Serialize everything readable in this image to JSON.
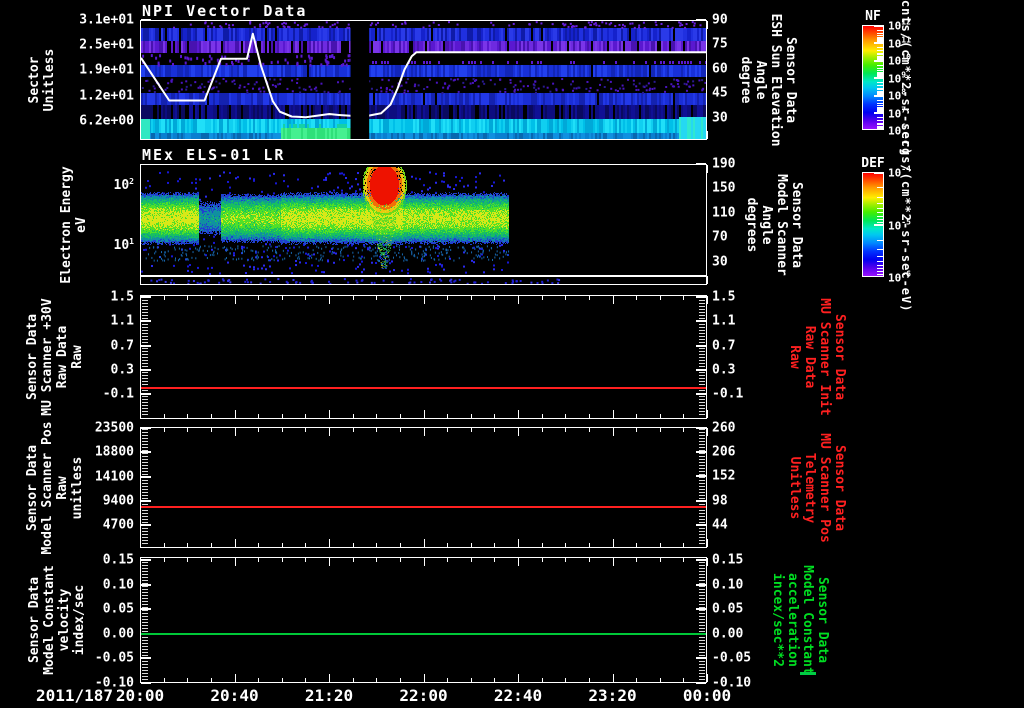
{
  "colors": {
    "background": "#000000",
    "frame": "#ffffff",
    "white_curve": "#ffffff",
    "red_series": "#ff2020",
    "green_series": "#00c838",
    "red_label": "#ff2020",
    "green_label": "#00dd22"
  },
  "time_axis": {
    "date_label": "2011/187",
    "tick_labels": [
      "20:00",
      "20:40",
      "21:20",
      "22:00",
      "22:40",
      "23:20",
      "00:00"
    ],
    "start": "20:00",
    "end": "00:00",
    "xlim_minutes": [
      0,
      240
    ],
    "major_tick_minutes": 40,
    "minor_tick_minutes": 10
  },
  "stray_mark": {
    "color": "#00cc44",
    "note": "small green dash artifact right of bottom axis"
  },
  "chart_data": [
    {
      "id": "npi",
      "type": "spectrogram",
      "title": "NPI Vector Data",
      "left_axis": {
        "label_lines": [
          "Sector",
          "Unitless"
        ],
        "ylim": [
          1.5,
          31
        ],
        "ticks": [
          {
            "label": "3.1e+01",
            "value": 31
          },
          {
            "label": "2.5e+01",
            "value": 24.8
          },
          {
            "label": "1.9e+01",
            "value": 18.6
          },
          {
            "label": "1.2e+01",
            "value": 12.4
          },
          {
            "label": "6.2e+00",
            "value": 6.2
          }
        ]
      },
      "right_axis": {
        "label_lines": [
          "Sensor Data",
          "ESH Sun Elevation",
          "Angle",
          "degree"
        ],
        "ylim": [
          16.5,
          90
        ],
        "ticks": [
          {
            "label": "90",
            "value": 90
          },
          {
            "label": "75",
            "value": 75
          },
          {
            "label": "60",
            "value": 60
          },
          {
            "label": "45",
            "value": 45
          },
          {
            "label": "30",
            "value": 30
          }
        ]
      },
      "colorbar": {
        "name": "NF",
        "units": "cnts/(cm**2-sr-sec)",
        "tick_exponents": [
          12,
          11,
          10,
          9,
          8,
          7,
          6
        ]
      },
      "overlay_line": {
        "name": "esh-sun-elevation-curve",
        "color": "#ffffff",
        "axis": "right",
        "points_min_deg": [
          [
            0,
            67
          ],
          [
            12,
            40.5
          ],
          [
            27,
            40.5
          ],
          [
            34,
            66.5
          ],
          [
            45,
            66.5
          ],
          [
            47.5,
            82
          ],
          [
            51,
            62
          ],
          [
            56,
            40
          ],
          [
            59,
            33.5
          ],
          [
            64,
            30.5
          ],
          [
            70,
            30
          ],
          [
            80,
            32
          ],
          [
            84,
            31.5
          ],
          [
            89,
            31
          ],
          [
            96.5,
            31
          ],
          [
            102,
            32.5
          ],
          [
            106,
            38
          ],
          [
            109,
            48
          ],
          [
            112,
            60
          ],
          [
            115,
            68
          ],
          [
            117,
            70.5
          ],
          [
            240,
            70.5
          ]
        ]
      },
      "data_gap_minutes": [
        89,
        96.5
      ],
      "description": "horizontal blue/purple count bands with bright cyan band near bottom and data-gap column ~21:29-21:37"
    },
    {
      "id": "els",
      "type": "spectrogram",
      "title": "MEx ELS-01 LR",
      "left_axis": {
        "label_lines": [
          "Electron Energy",
          "eV"
        ],
        "scale": "log",
        "ylim_exp": [
          0.33,
          2.35
        ],
        "ticks": [
          {
            "label": "10^2",
            "exp": 2
          },
          {
            "label": "10^1",
            "exp": 1
          }
        ]
      },
      "right_axis": {
        "label_lines": [
          "Sensor Data",
          "Model Scanner",
          "Angle",
          "degrees"
        ],
        "ylim": [
          -8.4,
          190
        ],
        "ticks": [
          {
            "label": "190",
            "value": 190
          },
          {
            "label": "150",
            "value": 150
          },
          {
            "label": "110",
            "value": 110
          },
          {
            "label": "70",
            "value": 70
          },
          {
            "label": "30",
            "value": 30
          }
        ]
      },
      "colorbar": {
        "name": "DEF",
        "units": "ergs/(cm**2-sr-sec-eV)",
        "tick_exponents": [
          -4,
          -5,
          -6
        ]
      },
      "data_end_minute": 156,
      "features": {
        "main_band_energy_eV": [
          7,
          60
        ],
        "burst_minutes": [
          95,
          112
        ],
        "burst": "intense red high-energy flux burst ~21:35-21:52 with plume to low energies"
      }
    },
    {
      "id": "mu30v",
      "type": "line",
      "left_axis": {
        "label_lines": [
          "Sensor Data",
          "MU Scanner +30V",
          "Raw Data",
          "Raw"
        ],
        "ylim": [
          -0.512,
          1.533
        ],
        "ticks": [
          {
            "label": "1.5",
            "value": 1.5
          },
          {
            "label": "1.1",
            "value": 1.1
          },
          {
            "label": "0.7",
            "value": 0.7
          },
          {
            "label": "0.3",
            "value": 0.3
          },
          {
            "label": "-0.1",
            "value": -0.1
          }
        ]
      },
      "right_axis": {
        "label_lines": [
          "Sensor Data",
          "MU Scanner Init",
          "Raw Data",
          "Raw"
        ],
        "label_color": "#ff2020",
        "ylim": [
          -0.512,
          1.533
        ],
        "ticks": [
          {
            "label": "1.5",
            "value": 1.5
          },
          {
            "label": "1.1",
            "value": 1.1
          },
          {
            "label": "0.7",
            "value": 0.7
          },
          {
            "label": "0.3",
            "value": 0.3
          },
          {
            "label": "-0.1",
            "value": -0.1
          }
        ]
      },
      "series": [
        {
          "name": "mu-scanner-30v-raw",
          "color": "#ff2020",
          "shape": "constant",
          "value": 0.0
        }
      ]
    },
    {
      "id": "scanner-pos",
      "type": "line",
      "left_axis": {
        "label_lines": [
          "Sensor Data",
          "Model Scanner Pos",
          "Raw",
          "unitless"
        ],
        "ylim": [
          240,
          23700
        ],
        "ticks": [
          {
            "label": "23500",
            "value": 23500
          },
          {
            "label": "18800",
            "value": 18800
          },
          {
            "label": "14100",
            "value": 14100
          },
          {
            "label": "9400",
            "value": 9400
          },
          {
            "label": "4700",
            "value": 4700
          }
        ]
      },
      "right_axis": {
        "label_lines": [
          "Sensor Data",
          "MU Scanner Pos",
          "Telemetry",
          "Unitless"
        ],
        "label_color": "#ff2020",
        "ylim": [
          -7.2,
          262
        ],
        "ticks": [
          {
            "label": "260",
            "value": 260
          },
          {
            "label": "206",
            "value": 206
          },
          {
            "label": "152",
            "value": 152
          },
          {
            "label": "98",
            "value": 98
          },
          {
            "label": "44",
            "value": 44
          }
        ]
      },
      "series": [
        {
          "name": "model-scanner-pos-raw",
          "color": "#ff2020",
          "shape": "constant",
          "value": 8200
        }
      ]
    },
    {
      "id": "model-constant",
      "type": "line",
      "left_axis": {
        "label_lines": [
          "Sensor Data",
          "Model Constant",
          "velocity",
          "index/sec"
        ],
        "ylim": [
          -0.1,
          0.156
        ],
        "ticks": [
          {
            "label": "0.15",
            "value": 0.15
          },
          {
            "label": "0.10",
            "value": 0.1
          },
          {
            "label": "0.05",
            "value": 0.05
          },
          {
            "label": "0.00",
            "value": 0.0
          },
          {
            "label": "-0.05",
            "value": -0.05
          },
          {
            "label": "-0.10",
            "value": -0.1
          }
        ]
      },
      "right_axis": {
        "label_lines": [
          "Sensor Data",
          "Model Constant",
          "acceleration",
          "incex/sec**2"
        ],
        "label_color": "#00dd22",
        "ylim": [
          -0.1,
          0.156
        ],
        "ticks": [
          {
            "label": "0.15",
            "value": 0.15
          },
          {
            "label": "0.10",
            "value": 0.1
          },
          {
            "label": "0.05",
            "value": 0.05
          },
          {
            "label": "0.00",
            "value": 0.0
          },
          {
            "label": "-0.05",
            "value": -0.05
          },
          {
            "label": "-0.10",
            "value": -0.1
          }
        ]
      },
      "series": [
        {
          "name": "model-constant-velocity",
          "color": "#00c838",
          "shape": "constant",
          "value": 0.0
        }
      ]
    }
  ]
}
